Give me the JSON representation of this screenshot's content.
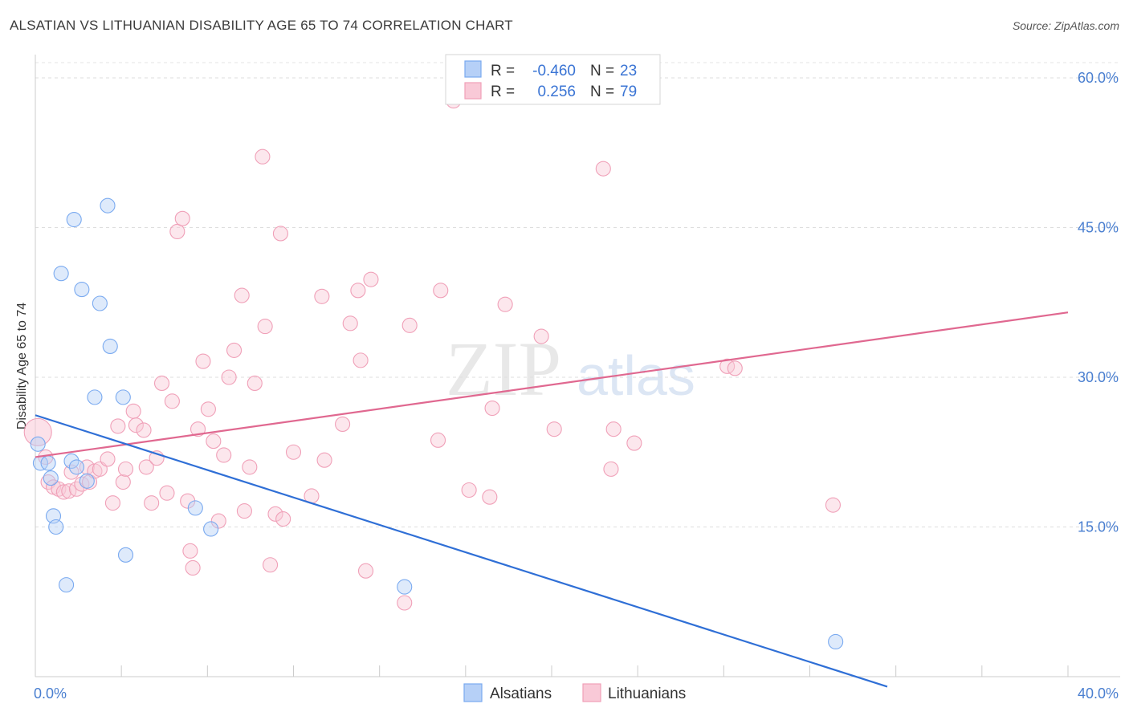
{
  "header": {
    "title": "ALSATIAN VS LITHUANIAN DISABILITY AGE 65 TO 74 CORRELATION CHART",
    "source": "Source: ZipAtlas.com"
  },
  "watermark": {
    "zip": "ZIP",
    "atlas": "atlas"
  },
  "chart_data": {
    "type": "scatter",
    "title": "ALSATIAN VS LITHUANIAN DISABILITY AGE 65 TO 74 CORRELATION CHART",
    "xlabel": "",
    "ylabel": "Disability Age 65 to 74",
    "xlim": [
      0,
      40
    ],
    "ylim": [
      0,
      60
    ],
    "x_tick_labels": {
      "min": "0.0%",
      "max": "40.0%"
    },
    "y_ticks": [
      {
        "value": 15,
        "label": "15.0%"
      },
      {
        "value": 30,
        "label": "30.0%"
      },
      {
        "value": 45,
        "label": "45.0%"
      },
      {
        "value": 60,
        "label": "60.0%"
      }
    ],
    "stats_legend": [
      {
        "series": "Alsatians",
        "r_label": "R =",
        "r_value": "-0.460",
        "n_label": "N =",
        "n_value": "23"
      },
      {
        "series": "Lithuanians",
        "r_label": "R =",
        "r_value": "0.256",
        "n_label": "N =",
        "n_value": "79"
      }
    ],
    "series": [
      {
        "name": "Alsatians",
        "color": "#7aaaf0",
        "fill": "#b6d0f7",
        "trend_color": "#2f6fd6",
        "trend": {
          "x0": 0,
          "y0": 26.2,
          "x1": 33,
          "y1": -1
        },
        "points": [
          [
            0.1,
            23.3
          ],
          [
            0.2,
            21.4
          ],
          [
            0.5,
            21.4
          ],
          [
            0.6,
            19.9
          ],
          [
            0.7,
            16.1
          ],
          [
            0.8,
            15.0
          ],
          [
            1.0,
            40.4
          ],
          [
            1.2,
            9.2
          ],
          [
            1.4,
            21.6
          ],
          [
            1.5,
            45.8
          ],
          [
            1.6,
            21.0
          ],
          [
            1.8,
            38.8
          ],
          [
            2.0,
            19.6
          ],
          [
            2.3,
            28.0
          ],
          [
            2.5,
            37.4
          ],
          [
            2.8,
            47.2
          ],
          [
            2.9,
            33.1
          ],
          [
            3.4,
            28.0
          ],
          [
            3.5,
            12.2
          ],
          [
            6.2,
            16.9
          ],
          [
            6.8,
            14.8
          ],
          [
            14.3,
            9.0
          ],
          [
            31.0,
            3.5
          ]
        ]
      },
      {
        "name": "Lithuanians",
        "color": "#f0a0b8",
        "fill": "#f9c9d7",
        "trend_color": "#e06890",
        "trend": {
          "x0": 0,
          "y0": 22.0,
          "x1": 40,
          "y1": 36.5
        },
        "points": [
          [
            0.1,
            24.5
          ],
          [
            0.4,
            22.0
          ],
          [
            0.5,
            19.5
          ],
          [
            0.7,
            19.0
          ],
          [
            0.9,
            18.8
          ],
          [
            1.1,
            18.5
          ],
          [
            1.3,
            18.6
          ],
          [
            1.4,
            20.5
          ],
          [
            1.6,
            18.8
          ],
          [
            1.8,
            19.3
          ],
          [
            2.0,
            21.0
          ],
          [
            2.1,
            19.5
          ],
          [
            2.3,
            20.6
          ],
          [
            2.5,
            20.8
          ],
          [
            2.8,
            21.8
          ],
          [
            3.0,
            17.4
          ],
          [
            3.2,
            25.1
          ],
          [
            3.4,
            19.5
          ],
          [
            3.5,
            20.8
          ],
          [
            3.8,
            26.6
          ],
          [
            3.9,
            25.2
          ],
          [
            4.2,
            24.7
          ],
          [
            4.3,
            21.0
          ],
          [
            4.5,
            17.4
          ],
          [
            4.7,
            21.9
          ],
          [
            4.9,
            29.4
          ],
          [
            5.1,
            18.4
          ],
          [
            5.3,
            27.6
          ],
          [
            5.5,
            44.6
          ],
          [
            5.7,
            45.9
          ],
          [
            5.9,
            17.6
          ],
          [
            6.0,
            12.6
          ],
          [
            6.1,
            10.9
          ],
          [
            6.3,
            24.8
          ],
          [
            6.5,
            31.6
          ],
          [
            6.7,
            26.8
          ],
          [
            6.9,
            23.6
          ],
          [
            7.1,
            15.6
          ],
          [
            7.3,
            22.2
          ],
          [
            7.5,
            30.0
          ],
          [
            7.7,
            32.7
          ],
          [
            8.0,
            38.2
          ],
          [
            8.1,
            16.6
          ],
          [
            8.3,
            21.0
          ],
          [
            8.5,
            29.4
          ],
          [
            8.8,
            52.1
          ],
          [
            8.9,
            35.1
          ],
          [
            9.1,
            11.2
          ],
          [
            9.3,
            16.3
          ],
          [
            9.5,
            44.4
          ],
          [
            9.6,
            15.8
          ],
          [
            10.0,
            22.5
          ],
          [
            10.7,
            18.1
          ],
          [
            11.1,
            38.1
          ],
          [
            11.2,
            21.7
          ],
          [
            11.9,
            25.3
          ],
          [
            12.2,
            35.4
          ],
          [
            12.5,
            38.7
          ],
          [
            12.6,
            31.7
          ],
          [
            12.8,
            10.6
          ],
          [
            13.0,
            39.8
          ],
          [
            14.3,
            7.4
          ],
          [
            14.5,
            35.2
          ],
          [
            15.6,
            23.7
          ],
          [
            15.7,
            38.7
          ],
          [
            16.2,
            57.7
          ],
          [
            16.8,
            18.7
          ],
          [
            17.6,
            18.0
          ],
          [
            17.7,
            26.9
          ],
          [
            18.2,
            37.3
          ],
          [
            19.6,
            34.1
          ],
          [
            20.1,
            24.8
          ],
          [
            22.0,
            50.9
          ],
          [
            22.3,
            20.8
          ],
          [
            22.4,
            24.8
          ],
          [
            23.2,
            23.4
          ],
          [
            26.8,
            31.1
          ],
          [
            27.1,
            30.9
          ],
          [
            30.9,
            17.2
          ]
        ]
      }
    ]
  }
}
